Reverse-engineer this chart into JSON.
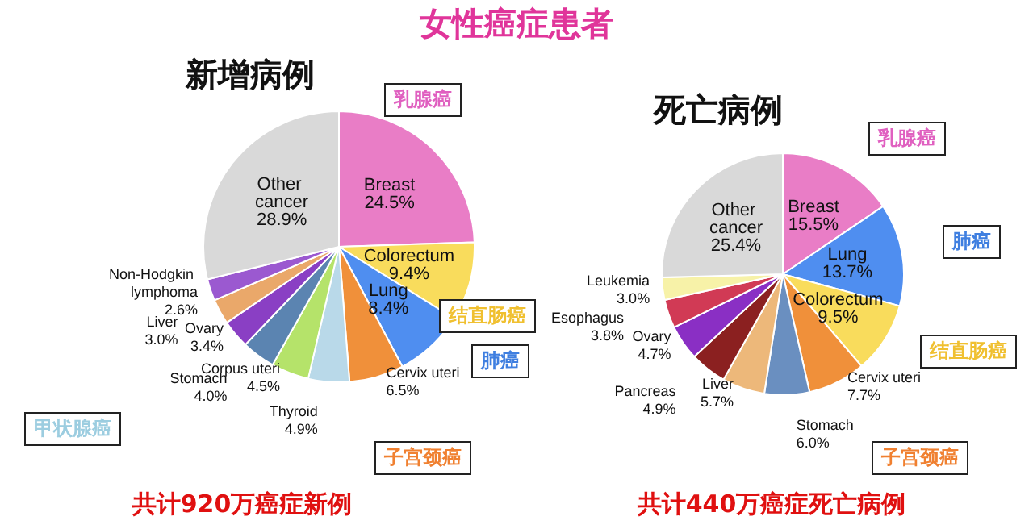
{
  "chart_data": [
    {
      "type": "pie",
      "title": "新增病例",
      "categories": [
        "Breast",
        "Colorectum",
        "Lung",
        "Cervix uteri",
        "Thyroid",
        "Corpus uteri",
        "Stomach",
        "Ovary",
        "Liver",
        "Non-Hodgkin lymphoma",
        "Other cancer"
      ],
      "values": [
        24.5,
        9.4,
        8.4,
        6.5,
        4.9,
        4.5,
        4.0,
        3.4,
        3.0,
        2.6,
        28.9
      ],
      "value_labels": [
        "24.5%",
        "9.4%",
        "8.4%",
        "6.5%",
        "4.9%",
        "4.5%",
        "4.0%",
        "3.4%",
        "3.0%",
        "2.6%",
        "28.9%"
      ],
      "colors": [
        "#e97dc6",
        "#f9dc5c",
        "#4f8ef0",
        "#f0903a",
        "#b9d9e9",
        "#b5e36a",
        "#5b84b1",
        "#8a3fc4",
        "#eaa86a",
        "#9b59d0",
        "#d9d9d9"
      ],
      "annotations": [
        "女性癌症患者",
        "乳腺癌",
        "结直肠癌",
        "肺癌",
        "子宫颈癌",
        "甲状腺癌",
        "共计920万癌症新例"
      ]
    },
    {
      "type": "pie",
      "title": "死亡病例",
      "categories": [
        "Breast",
        "Lung",
        "Colorectum",
        "Cervix uteri",
        "Stomach",
        "Liver",
        "Pancreas",
        "Ovary",
        "Esophagus",
        "Leukemia",
        "Other cancer"
      ],
      "values": [
        15.5,
        13.7,
        9.5,
        7.7,
        6.0,
        5.7,
        4.9,
        4.7,
        3.8,
        3.0,
        25.4
      ],
      "value_labels": [
        "15.5%",
        "13.7%",
        "9.5%",
        "7.7%",
        "6.0%",
        "5.7%",
        "4.9%",
        "4.7%",
        "3.8%",
        "3.0%",
        "25.4%"
      ],
      "colors": [
        "#e97dc6",
        "#4f8ef0",
        "#f9dc5c",
        "#f0903a",
        "#6a8fc0",
        "#edb87a",
        "#8b2020",
        "#8a2fc4",
        "#d13a55",
        "#f7f2a8",
        "#d9d9d9"
      ],
      "annotations": [
        "乳腺癌",
        "肺癌",
        "结直肠癌",
        "子宫颈癌",
        "共计440万癌症死亡病例"
      ]
    }
  ]
}
